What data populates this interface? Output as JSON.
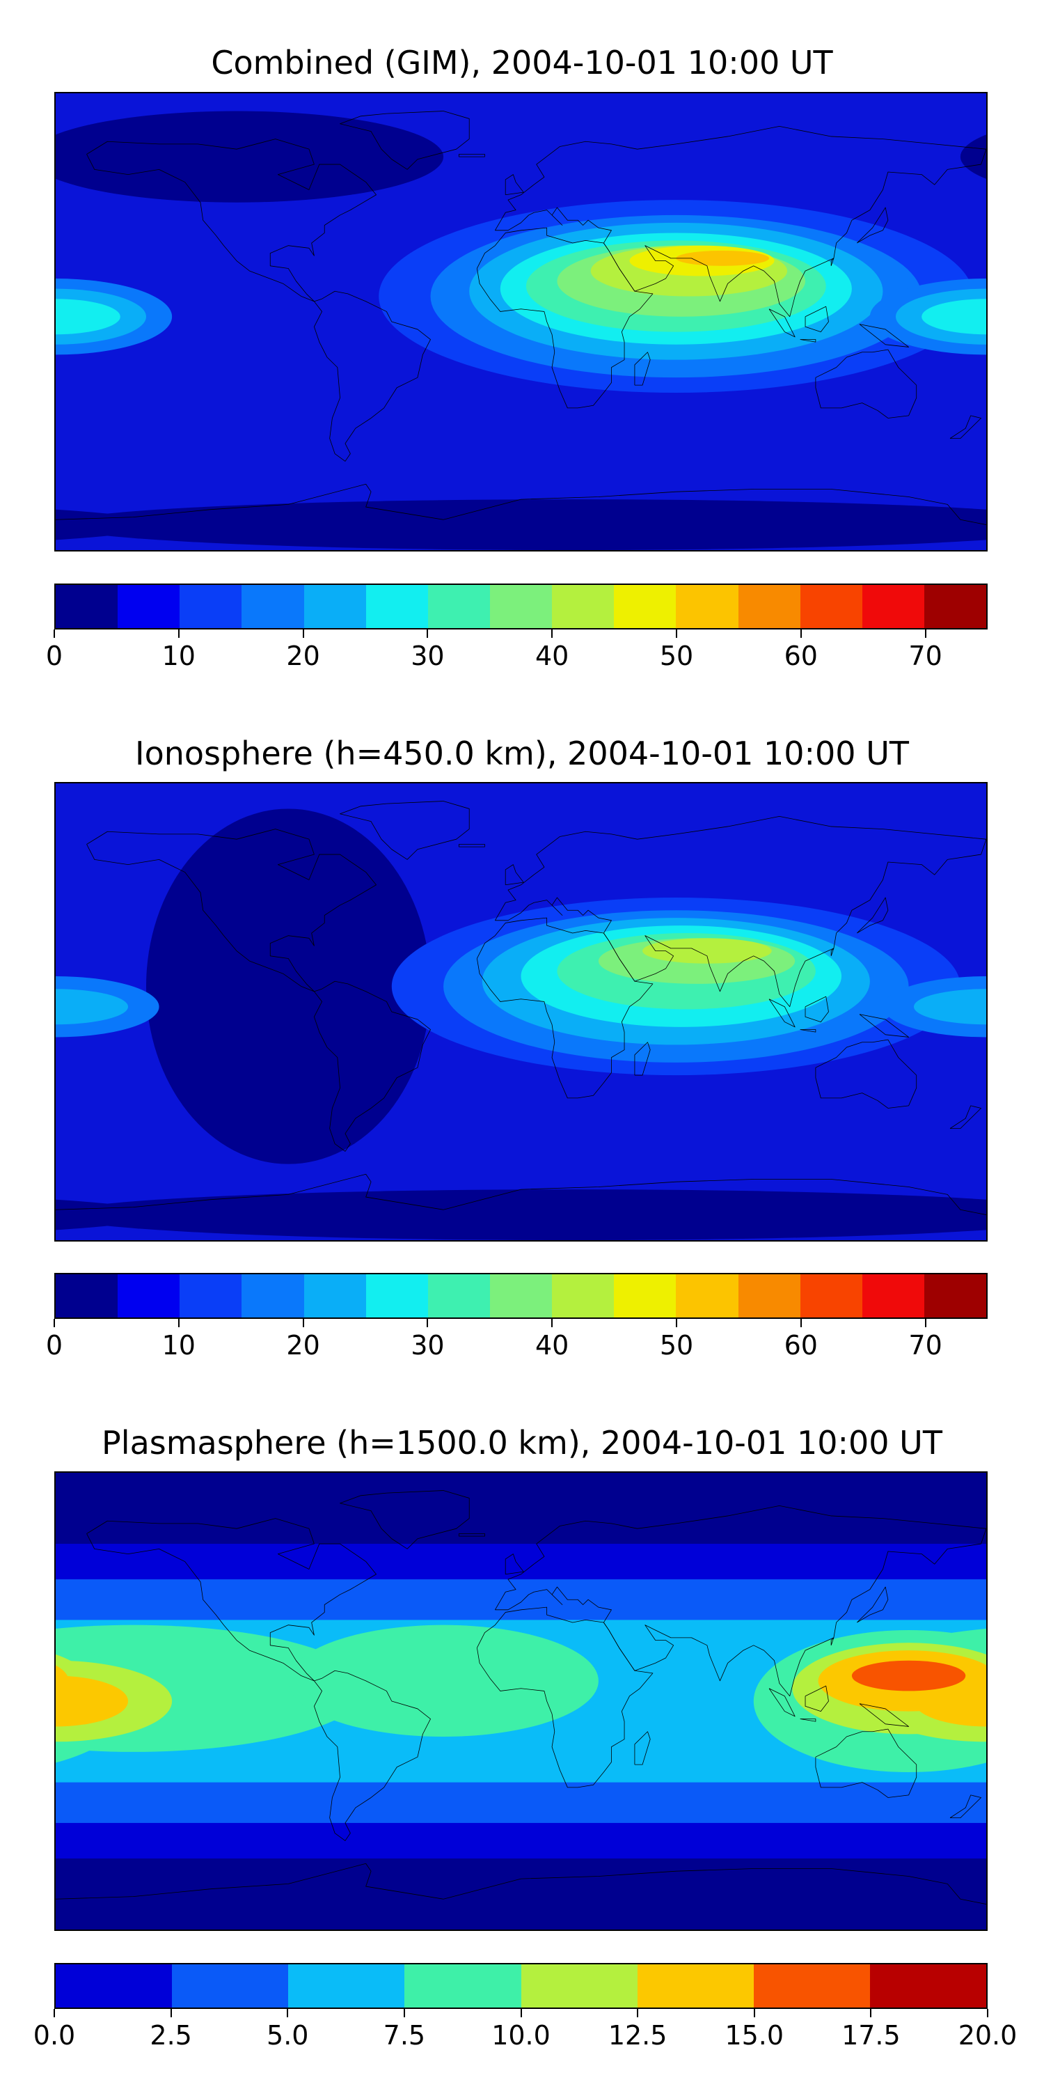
{
  "panels": [
    {
      "title": "Combined (GIM), 2004-10-01 10:00 UT",
      "base": "#0a14d8",
      "colorbar": {
        "colors": [
          "#00008f",
          "#0000f0",
          "#0a3ef7",
          "#0a78fb",
          "#0aaef7",
          "#12eef0",
          "#3ef0b0",
          "#7cf07c",
          "#b4f03e",
          "#eef000",
          "#fcc400",
          "#f88a00",
          "#f84400",
          "#f00a0a",
          "#9e0000"
        ],
        "ticks": [
          "0",
          "10",
          "20",
          "30",
          "40",
          "50",
          "60",
          "70"
        ],
        "tick_values": [
          0,
          10,
          20,
          30,
          40,
          50,
          60,
          70
        ],
        "range": [
          0,
          75
        ]
      },
      "features": [
        {
          "shape": "ellipse",
          "lon": 60,
          "lat": 10,
          "rlon": 115,
          "rlat": 38,
          "color": "#0a3ef7"
        },
        {
          "shape": "ellipse",
          "lon": 60,
          "lat": 10,
          "rlon": 95,
          "rlat": 32,
          "color": "#0a78fb"
        },
        {
          "shape": "ellipse",
          "lon": 60,
          "lat": 12,
          "rlon": 80,
          "rlat": 27,
          "color": "#0aaef7"
        },
        {
          "shape": "ellipse",
          "lon": 60,
          "lat": 13,
          "rlon": 68,
          "rlat": 22,
          "color": "#12eef0"
        },
        {
          "shape": "ellipse",
          "lon": 60,
          "lat": 14,
          "rlon": 58,
          "rlat": 18,
          "color": "#3ef0b0"
        },
        {
          "shape": "ellipse",
          "lon": 62,
          "lat": 16,
          "rlon": 48,
          "rlat": 14,
          "color": "#7cf07c"
        },
        {
          "shape": "ellipse",
          "lon": 65,
          "lat": 20,
          "rlon": 38,
          "rlat": 10,
          "color": "#b4f03e"
        },
        {
          "shape": "ellipse",
          "lon": 70,
          "lat": 24,
          "rlon": 28,
          "rlat": 6,
          "color": "#eef000"
        },
        {
          "shape": "ellipse",
          "lon": 78,
          "lat": 25,
          "rlon": 18,
          "rlat": 3,
          "color": "#fcc400"
        },
        {
          "shape": "ellipse",
          "lon": -180,
          "lat": 2,
          "rlon": 45,
          "rlat": 15,
          "color": "#0a78fb"
        },
        {
          "shape": "ellipse",
          "lon": -180,
          "lat": 2,
          "rlon": 35,
          "rlat": 11,
          "color": "#0aaef7"
        },
        {
          "shape": "ellipse",
          "lon": -180,
          "lat": 2,
          "rlon": 25,
          "rlat": 7,
          "color": "#12eef0"
        },
        {
          "shape": "ellipse",
          "lon": -110,
          "lat": 65,
          "rlon": 80,
          "rlat": 18,
          "color": "#00008f"
        },
        {
          "shape": "ellipse",
          "lon": 20,
          "lat": -80,
          "rlon": 200,
          "rlat": 10,
          "color": "#00008f"
        }
      ]
    },
    {
      "title": "Ionosphere  (h=450.0 km), 2004-10-01 10:00 UT",
      "base": "#0a14d8",
      "colorbar": {
        "colors": [
          "#00008f",
          "#0000f0",
          "#0a3ef7",
          "#0a78fb",
          "#0aaef7",
          "#12eef0",
          "#3ef0b0",
          "#7cf07c",
          "#b4f03e",
          "#eef000",
          "#fcc400",
          "#f88a00",
          "#f84400",
          "#f00a0a",
          "#9e0000"
        ],
        "ticks": [
          "0",
          "10",
          "20",
          "30",
          "40",
          "50",
          "60",
          "70"
        ],
        "tick_values": [
          0,
          10,
          20,
          30,
          40,
          50,
          60,
          70
        ],
        "range": [
          0,
          75
        ]
      },
      "features": [
        {
          "shape": "ellipse",
          "lon": -90,
          "lat": 10,
          "rlon": 55,
          "rlat": 70,
          "color": "#00008f"
        },
        {
          "shape": "ellipse",
          "lon": 60,
          "lat": 10,
          "rlon": 110,
          "rlat": 35,
          "color": "#0a3ef7"
        },
        {
          "shape": "ellipse",
          "lon": 60,
          "lat": 10,
          "rlon": 90,
          "rlat": 30,
          "color": "#0a78fb"
        },
        {
          "shape": "ellipse",
          "lon": 60,
          "lat": 12,
          "rlon": 75,
          "rlat": 25,
          "color": "#0aaef7"
        },
        {
          "shape": "ellipse",
          "lon": 62,
          "lat": 14,
          "rlon": 62,
          "rlat": 20,
          "color": "#12eef0"
        },
        {
          "shape": "ellipse",
          "lon": 64,
          "lat": 16,
          "rlon": 50,
          "rlat": 15,
          "color": "#3ef0b0"
        },
        {
          "shape": "ellipse",
          "lon": 68,
          "lat": 20,
          "rlon": 38,
          "rlat": 9,
          "color": "#7cf07c"
        },
        {
          "shape": "ellipse",
          "lon": 72,
          "lat": 24,
          "rlon": 25,
          "rlat": 5,
          "color": "#b4f03e"
        },
        {
          "shape": "ellipse",
          "lon": -180,
          "lat": 2,
          "rlon": 40,
          "rlat": 12,
          "color": "#0a78fb"
        },
        {
          "shape": "ellipse",
          "lon": -180,
          "lat": 2,
          "rlon": 28,
          "rlat": 7,
          "color": "#0aaef7"
        },
        {
          "shape": "ellipse",
          "lon": 20,
          "lat": -80,
          "rlon": 200,
          "rlat": 10,
          "color": "#00008f"
        }
      ]
    },
    {
      "title": "Plasmasphere (h=1500.0 km), 2004-10-01 10:00 UT",
      "base": "#00008f",
      "colorbar": {
        "colors": [
          "#0000d8",
          "#0a5af8",
          "#0abcf8",
          "#3ef0a8",
          "#b4f03e",
          "#fcc800",
          "#f85400",
          "#b80000"
        ],
        "ticks": [
          "0.0",
          "2.5",
          "5.0",
          "7.5",
          "10.0",
          "12.5",
          "15.0",
          "17.5",
          "20.0"
        ],
        "tick_values": [
          0,
          2.5,
          5,
          7.5,
          10,
          12.5,
          15,
          17.5,
          20
        ],
        "range": [
          0,
          20
        ]
      },
      "features": [
        {
          "shape": "band",
          "lat": 0,
          "rlat": 62,
          "color": "#0000d8"
        },
        {
          "shape": "band",
          "lat": 0,
          "rlat": 48,
          "color": "#0a5af8"
        },
        {
          "shape": "band",
          "lat": 0,
          "rlat": 32,
          "color": "#0abcf8"
        },
        {
          "shape": "ellipse",
          "lon": -150,
          "lat": 5,
          "rlon": 90,
          "rlat": 25,
          "color": "#3ef0a8"
        },
        {
          "shape": "ellipse",
          "lon": -30,
          "lat": 8,
          "rlon": 60,
          "rlat": 22,
          "color": "#3ef0a8"
        },
        {
          "shape": "ellipse",
          "lon": 150,
          "lat": 0,
          "rlon": 60,
          "rlat": 28,
          "color": "#3ef0a8"
        },
        {
          "shape": "ellipse",
          "lon": -180,
          "lat": 0,
          "rlon": 45,
          "rlat": 16,
          "color": "#b4f03e"
        },
        {
          "shape": "ellipse",
          "lon": 150,
          "lat": 5,
          "rlon": 45,
          "rlat": 18,
          "color": "#b4f03e"
        },
        {
          "shape": "ellipse",
          "lon": -180,
          "lat": 0,
          "rlon": 28,
          "rlat": 10,
          "color": "#fcc800"
        },
        {
          "shape": "ellipse",
          "lon": 150,
          "lat": 8,
          "rlon": 35,
          "rlat": 12,
          "color": "#fcc800"
        },
        {
          "shape": "ellipse",
          "lon": 150,
          "lat": 10,
          "rlon": 22,
          "rlat": 6,
          "color": "#f85400"
        }
      ]
    }
  ]
}
